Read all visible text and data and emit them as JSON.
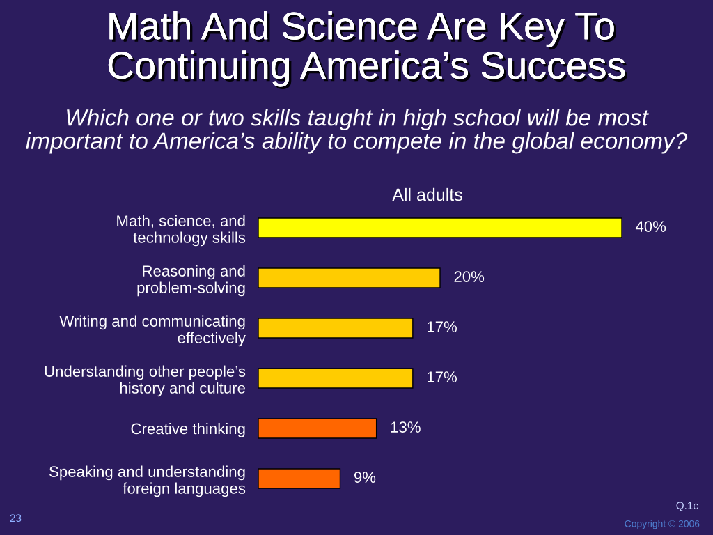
{
  "chart_data": {
    "type": "bar",
    "orientation": "horizontal",
    "title": "Math And Science Are Key To\nContinuing America’s Success",
    "subtitle": "Which one or two skills taught in high school will be most\nimportant to America’s ability to compete in the global economy?",
    "categories": [
      "Math, science, and\ntechnology skills",
      "Reasoning and\nproblem-solving",
      "Writing and communicating\neffectively",
      "Understanding other people’s\nhistory and culture",
      "Creative thinking",
      "Speaking and understanding\nforeign languages"
    ],
    "series": [
      {
        "name": "All adults",
        "colors": [
          "#ffff00",
          "#ffcc00",
          "#ffcc00",
          "#ffcc00",
          "#ff6600",
          "#ff6600"
        ],
        "values": [
          40,
          20,
          17,
          17,
          13,
          9
        ],
        "value_labels": [
          "40%",
          "20%",
          "17%",
          "17%",
          "13%",
          "9%"
        ]
      }
    ],
    "annotations": [
      "Q.1c",
      "23",
      "Copyright © 2006"
    ],
    "tick_labels": "y",
    "grid": false
  }
}
